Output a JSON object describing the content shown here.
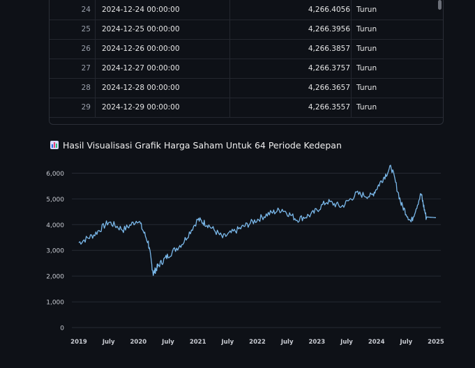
{
  "table": {
    "rows": [
      {
        "index": "24",
        "date": "2024-12-24 00:00:00",
        "value": "4,266.4056",
        "trend": "Turun"
      },
      {
        "index": "25",
        "date": "2024-12-25 00:00:00",
        "value": "4,266.3956",
        "trend": "Turun"
      },
      {
        "index": "26",
        "date": "2024-12-26 00:00:00",
        "value": "4,266.3857",
        "trend": "Turun"
      },
      {
        "index": "27",
        "date": "2024-12-27 00:00:00",
        "value": "4,266.3757",
        "trend": "Turun"
      },
      {
        "index": "28",
        "date": "2024-12-28 00:00:00",
        "value": "4,266.3657",
        "trend": "Turun"
      },
      {
        "index": "29",
        "date": "2024-12-29 00:00:00",
        "value": "4,266.3557",
        "trend": "Turun"
      }
    ]
  },
  "section": {
    "icon": "bar-chart-icon",
    "title": "Hasil Visualisasi Grafik Harga Saham Untuk 64 Periode Kedepan"
  },
  "chart_data": {
    "type": "line",
    "line_color": "#7ab8ea",
    "grid": true,
    "ylim": [
      0,
      6500
    ],
    "y_ticks": [
      "0",
      "1,000",
      "2,000",
      "3,000",
      "4,000",
      "5,000",
      "6,000"
    ],
    "x_ticks": [
      "2019",
      "July",
      "2020",
      "July",
      "2021",
      "July",
      "2022",
      "July",
      "2023",
      "July",
      "2024",
      "July",
      "2025"
    ],
    "x": [
      "2019-01",
      "2019-04",
      "2019-07",
      "2019-10",
      "2020-01",
      "2020-03",
      "2020-04",
      "2020-05",
      "2020-07",
      "2020-10",
      "2021-01",
      "2021-03",
      "2021-06",
      "2021-09",
      "2021-12",
      "2022-03",
      "2022-06",
      "2022-09",
      "2022-12",
      "2023-03",
      "2023-06",
      "2023-09",
      "2023-12",
      "2024-02",
      "2024-04",
      "2024-06",
      "2024-08",
      "2024-10",
      "2024-11",
      "2025-01"
    ],
    "series": [
      {
        "values": [
          3300,
          3600,
          4100,
          3800,
          4200,
          3300,
          2100,
          2400,
          2800,
          3300,
          4200,
          4000,
          3500,
          3800,
          4100,
          4400,
          4600,
          4200,
          4400,
          4900,
          4700,
          5200,
          5100,
          5700,
          6250,
          4800,
          4100,
          5200,
          4300,
          4270
        ]
      }
    ]
  }
}
